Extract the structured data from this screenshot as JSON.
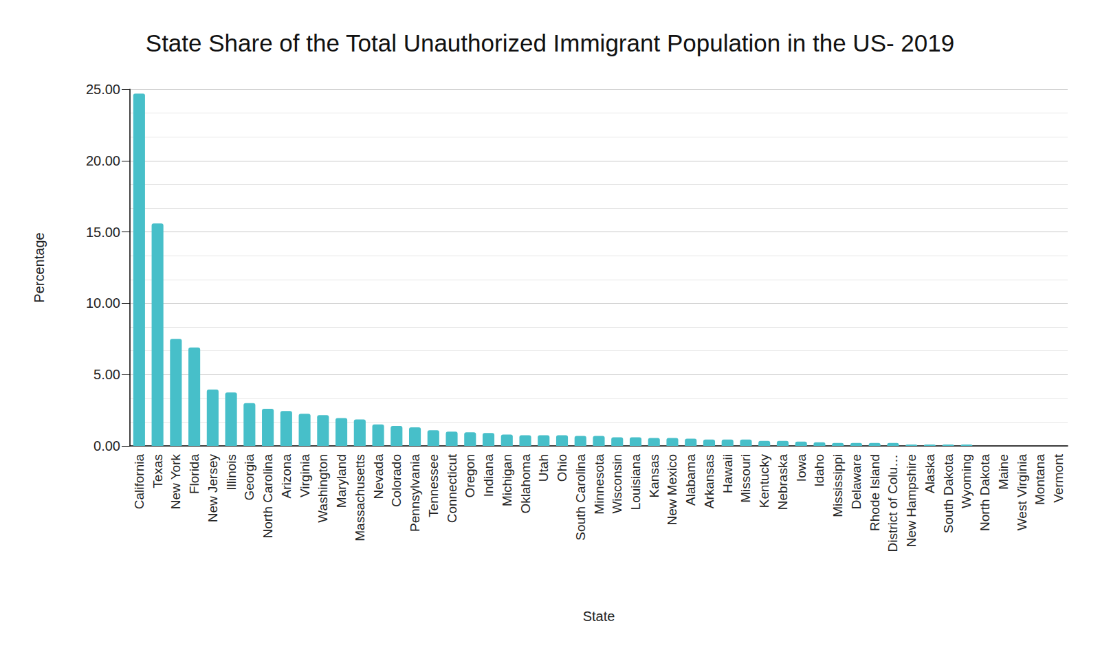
{
  "chart_data": {
    "type": "bar",
    "title": "State Share of the Total Unauthorized Immigrant Population in the US- 2019",
    "x_label": "State",
    "y_label": "Percentage",
    "categories": [
      "California",
      "Texas",
      "New York",
      "Florida",
      "New Jersey",
      "Illinois",
      "Georgia",
      "North Carolina",
      "Arizona",
      "Virginia",
      "Washington",
      "Maryland",
      "Massachusetts",
      "Nevada",
      "Colorado",
      "Pennsylvania",
      "Tennessee",
      "Connecticut",
      "Oregon",
      "Indiana",
      "Michigan",
      "Oklahoma",
      "Utah",
      "Ohio",
      "South Carolina",
      "Minnesota",
      "Wisconsin",
      "Louisiana",
      "Kansas",
      "New Mexico",
      "Alabama",
      "Arkansas",
      "Hawaii",
      "Missouri",
      "Kentucky",
      "Nebraska",
      "Iowa",
      "Idaho",
      "Mississippi",
      "Delaware",
      "Rhode Island",
      "District of Colu…",
      "New Hampshire",
      "Alaska",
      "South Dakota",
      "Wyoming",
      "North Dakota",
      "Maine",
      "West Virginia",
      "Montana",
      "Vermont"
    ],
    "values": [
      24.7,
      15.6,
      7.5,
      6.9,
      3.95,
      3.75,
      3.0,
      2.6,
      2.45,
      2.25,
      2.15,
      1.95,
      1.85,
      1.5,
      1.4,
      1.3,
      1.1,
      1.0,
      0.95,
      0.9,
      0.8,
      0.75,
      0.75,
      0.75,
      0.7,
      0.7,
      0.6,
      0.6,
      0.55,
      0.55,
      0.5,
      0.45,
      0.45,
      0.45,
      0.35,
      0.35,
      0.3,
      0.25,
      0.2,
      0.2,
      0.2,
      0.2,
      0.1,
      0.1,
      0.1,
      0.1,
      0,
      0,
      0,
      0,
      0
    ],
    "color": "#47bfc9",
    "ylim": [
      0,
      25
    ],
    "yticks": [
      {
        "value": 0,
        "label": "0.00"
      },
      {
        "value": 5,
        "label": "5.00"
      },
      {
        "value": 10,
        "label": "10.00"
      },
      {
        "value": 15,
        "label": "15.00"
      },
      {
        "value": 20,
        "label": "20.00"
      },
      {
        "value": 25,
        "label": "25.00"
      }
    ],
    "grid": true
  }
}
